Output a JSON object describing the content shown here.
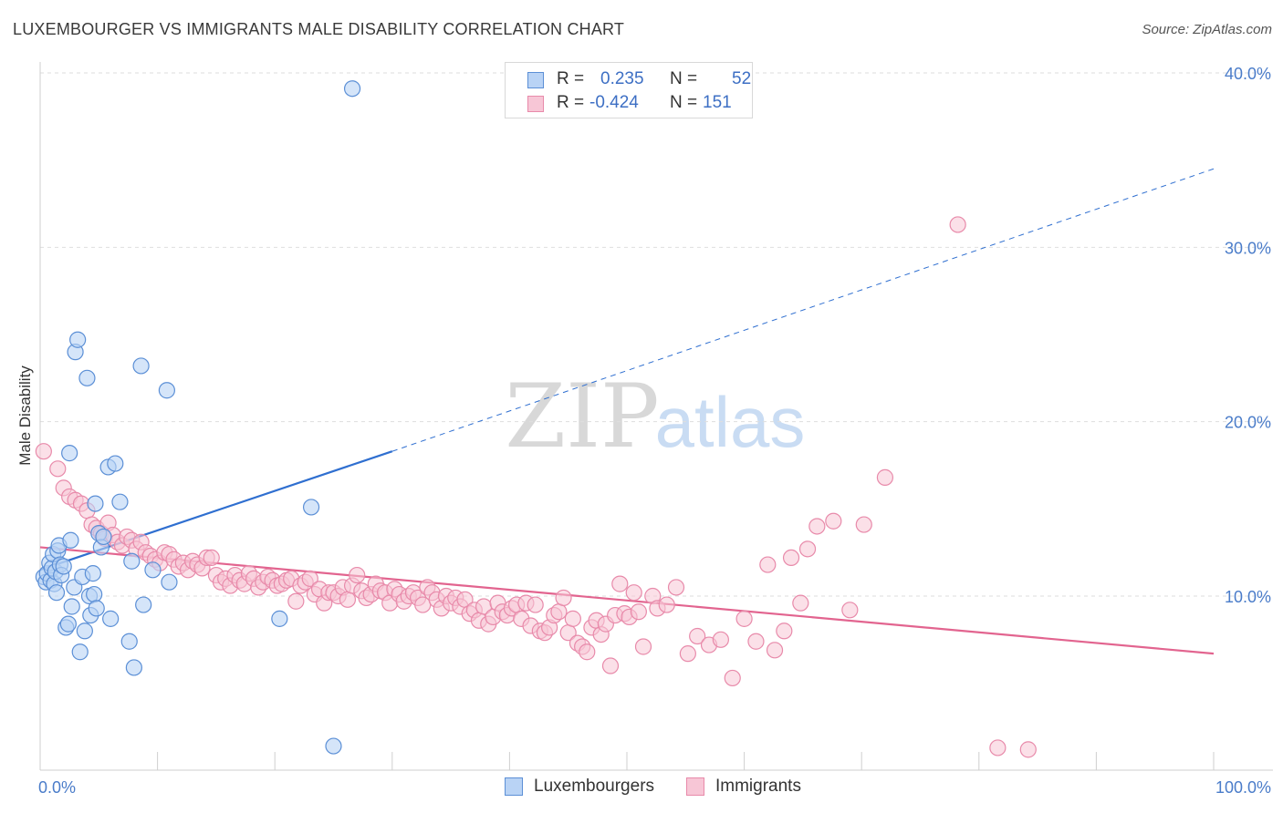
{
  "title": "LUXEMBOURGER VS IMMIGRANTS MALE DISABILITY CORRELATION CHART",
  "source": "Source: ZipAtlas.com",
  "colors": {
    "blue_fill": "#b9d3f5",
    "blue_stroke": "#5b8fd6",
    "blue_line": "#2f6fd0",
    "pink_fill": "#f7c6d6",
    "pink_stroke": "#e88aaa",
    "pink_line": "#e2648f",
    "tick_text": "#4a7cc9"
  },
  "legend": {
    "rows": [
      {
        "r_label": "R =",
        "r_value": "0.235",
        "n_label": "N =",
        "n_value": "52"
      },
      {
        "r_label": "R =",
        "r_value": "-0.424",
        "n_label": "N =",
        "n_value": "151"
      }
    ]
  },
  "bottom_legend": {
    "series1": "Luxembourgers",
    "series2": "Immigrants"
  },
  "chart_data": {
    "type": "scatter",
    "title": "LUXEMBOURGER VS IMMIGRANTS MALE DISABILITY CORRELATION CHART",
    "xlabel": "",
    "ylabel": "Male Disability",
    "xlim": [
      0,
      100
    ],
    "ylim": [
      0,
      42
    ],
    "x_tick_labels": [
      "0.0%",
      "100.0%"
    ],
    "y_ticks": [
      10,
      20,
      30,
      40
    ],
    "y_tick_labels": [
      "10.0%",
      "20.0%",
      "30.0%",
      "40.0%"
    ],
    "grid": true,
    "legend_position": "top-center",
    "watermark": {
      "part1": "ZIP",
      "part2": "atlas"
    },
    "series": [
      {
        "name": "Luxembourgers",
        "R": 0.235,
        "N": 52,
        "trend": {
          "x0": 0,
          "y0": 11.5,
          "x1": 30,
          "y1": 18.3,
          "dash_x1": 100,
          "dash_y1": 34.5
        },
        "points": [
          [
            0.3,
            11.1
          ],
          [
            0.5,
            10.8
          ],
          [
            0.6,
            11.3
          ],
          [
            0.8,
            11.9
          ],
          [
            0.9,
            10.9
          ],
          [
            1.0,
            11.6
          ],
          [
            1.1,
            12.4
          ],
          [
            1.2,
            10.7
          ],
          [
            1.3,
            11.4
          ],
          [
            1.4,
            10.2
          ],
          [
            1.5,
            12.6
          ],
          [
            1.6,
            12.9
          ],
          [
            1.7,
            11.8
          ],
          [
            1.8,
            11.2
          ],
          [
            2.0,
            11.7
          ],
          [
            2.2,
            8.2
          ],
          [
            2.4,
            8.4
          ],
          [
            2.5,
            18.2
          ],
          [
            2.6,
            13.2
          ],
          [
            2.7,
            9.4
          ],
          [
            2.9,
            10.5
          ],
          [
            3.0,
            24.0
          ],
          [
            3.2,
            24.7
          ],
          [
            3.4,
            6.8
          ],
          [
            3.6,
            11.1
          ],
          [
            3.8,
            8.0
          ],
          [
            4.0,
            22.5
          ],
          [
            4.2,
            10.0
          ],
          [
            4.3,
            8.9
          ],
          [
            4.5,
            11.3
          ],
          [
            4.6,
            10.1
          ],
          [
            4.7,
            15.3
          ],
          [
            4.8,
            9.3
          ],
          [
            5.0,
            13.6
          ],
          [
            5.2,
            12.8
          ],
          [
            5.4,
            13.4
          ],
          [
            5.8,
            17.4
          ],
          [
            6.0,
            8.7
          ],
          [
            6.4,
            17.6
          ],
          [
            6.8,
            15.4
          ],
          [
            7.6,
            7.4
          ],
          [
            7.8,
            12.0
          ],
          [
            8.0,
            5.9
          ],
          [
            8.6,
            23.2
          ],
          [
            8.8,
            9.5
          ],
          [
            9.6,
            11.5
          ],
          [
            10.8,
            21.8
          ],
          [
            11.0,
            10.8
          ],
          [
            20.4,
            8.7
          ],
          [
            23.1,
            15.1
          ],
          [
            25.0,
            1.4
          ],
          [
            26.6,
            39.1
          ]
        ]
      },
      {
        "name": "Immigrants",
        "R": -0.424,
        "N": 151,
        "trend": {
          "x0": 0,
          "y0": 12.8,
          "x1": 100,
          "y1": 6.7
        },
        "points": [
          [
            0.3,
            18.3
          ],
          [
            1.5,
            17.3
          ],
          [
            2.0,
            16.2
          ],
          [
            2.5,
            15.7
          ],
          [
            3.0,
            15.5
          ],
          [
            3.5,
            15.3
          ],
          [
            4.0,
            14.9
          ],
          [
            4.4,
            14.1
          ],
          [
            4.8,
            13.9
          ],
          [
            5.2,
            13.6
          ],
          [
            5.5,
            13.3
          ],
          [
            5.8,
            14.2
          ],
          [
            6.2,
            13.5
          ],
          [
            6.6,
            13.1
          ],
          [
            7.0,
            12.9
          ],
          [
            7.4,
            13.4
          ],
          [
            7.8,
            13.2
          ],
          [
            8.2,
            12.7
          ],
          [
            8.6,
            13.1
          ],
          [
            9.0,
            12.5
          ],
          [
            9.4,
            12.3
          ],
          [
            9.8,
            12.1
          ],
          [
            10.2,
            11.9
          ],
          [
            10.6,
            12.5
          ],
          [
            11.0,
            12.4
          ],
          [
            11.4,
            12.1
          ],
          [
            11.8,
            11.7
          ],
          [
            12.2,
            11.9
          ],
          [
            12.6,
            11.5
          ],
          [
            13.0,
            12.0
          ],
          [
            13.4,
            11.8
          ],
          [
            13.8,
            11.6
          ],
          [
            14.2,
            12.2
          ],
          [
            14.6,
            12.2
          ],
          [
            15.0,
            11.2
          ],
          [
            15.4,
            10.8
          ],
          [
            15.8,
            11.0
          ],
          [
            16.2,
            10.6
          ],
          [
            16.6,
            11.2
          ],
          [
            17.0,
            10.9
          ],
          [
            17.4,
            10.7
          ],
          [
            17.8,
            11.3
          ],
          [
            18.2,
            11.0
          ],
          [
            18.6,
            10.5
          ],
          [
            19.0,
            10.8
          ],
          [
            19.4,
            11.1
          ],
          [
            19.8,
            10.9
          ],
          [
            20.2,
            10.6
          ],
          [
            20.6,
            10.7
          ],
          [
            21.0,
            10.9
          ],
          [
            21.4,
            11.0
          ],
          [
            21.8,
            9.7
          ],
          [
            22.2,
            10.6
          ],
          [
            22.6,
            10.8
          ],
          [
            23.0,
            11.0
          ],
          [
            23.4,
            10.1
          ],
          [
            23.8,
            10.4
          ],
          [
            24.2,
            9.6
          ],
          [
            24.6,
            10.2
          ],
          [
            25.0,
            10.2
          ],
          [
            25.4,
            10.0
          ],
          [
            25.8,
            10.5
          ],
          [
            26.2,
            9.8
          ],
          [
            26.6,
            10.6
          ],
          [
            27.0,
            11.2
          ],
          [
            27.4,
            10.3
          ],
          [
            27.8,
            9.9
          ],
          [
            28.2,
            10.1
          ],
          [
            28.6,
            10.7
          ],
          [
            29.0,
            10.3
          ],
          [
            29.4,
            10.2
          ],
          [
            29.8,
            9.6
          ],
          [
            30.2,
            10.4
          ],
          [
            30.6,
            10.1
          ],
          [
            31.0,
            9.7
          ],
          [
            31.4,
            10.0
          ],
          [
            31.8,
            10.2
          ],
          [
            32.2,
            9.9
          ],
          [
            32.6,
            9.5
          ],
          [
            33.0,
            10.5
          ],
          [
            33.4,
            10.2
          ],
          [
            33.8,
            9.8
          ],
          [
            34.2,
            9.3
          ],
          [
            34.6,
            10.0
          ],
          [
            35.0,
            9.6
          ],
          [
            35.4,
            9.9
          ],
          [
            35.8,
            9.4
          ],
          [
            36.2,
            9.8
          ],
          [
            36.6,
            9.0
          ],
          [
            37.0,
            9.2
          ],
          [
            37.4,
            8.6
          ],
          [
            37.8,
            9.4
          ],
          [
            38.2,
            8.4
          ],
          [
            38.6,
            8.8
          ],
          [
            39.0,
            9.6
          ],
          [
            39.4,
            9.1
          ],
          [
            39.8,
            8.9
          ],
          [
            40.2,
            9.3
          ],
          [
            40.6,
            9.5
          ],
          [
            41.0,
            8.7
          ],
          [
            41.4,
            9.6
          ],
          [
            41.8,
            8.3
          ],
          [
            42.2,
            9.5
          ],
          [
            42.6,
            8.0
          ],
          [
            43.0,
            7.9
          ],
          [
            43.4,
            8.2
          ],
          [
            43.8,
            8.9
          ],
          [
            44.2,
            9.1
          ],
          [
            44.6,
            9.9
          ],
          [
            45.0,
            7.9
          ],
          [
            45.4,
            8.7
          ],
          [
            45.8,
            7.3
          ],
          [
            46.2,
            7.1
          ],
          [
            46.6,
            6.8
          ],
          [
            47.0,
            8.2
          ],
          [
            47.4,
            8.6
          ],
          [
            47.8,
            7.8
          ],
          [
            48.2,
            8.4
          ],
          [
            48.6,
            6.0
          ],
          [
            49.0,
            8.9
          ],
          [
            49.4,
            10.7
          ],
          [
            49.8,
            9.0
          ],
          [
            50.2,
            8.8
          ],
          [
            50.6,
            10.2
          ],
          [
            51.0,
            9.1
          ],
          [
            51.4,
            7.1
          ],
          [
            52.2,
            10.0
          ],
          [
            52.6,
            9.3
          ],
          [
            53.4,
            9.5
          ],
          [
            54.2,
            10.5
          ],
          [
            55.2,
            6.7
          ],
          [
            56.0,
            7.7
          ],
          [
            57.0,
            7.2
          ],
          [
            58.0,
            7.5
          ],
          [
            59.0,
            5.3
          ],
          [
            60.0,
            8.7
          ],
          [
            61.0,
            7.4
          ],
          [
            62.0,
            11.8
          ],
          [
            62.6,
            6.9
          ],
          [
            63.4,
            8.0
          ],
          [
            64.0,
            12.2
          ],
          [
            64.8,
            9.6
          ],
          [
            65.4,
            12.7
          ],
          [
            66.2,
            14.0
          ],
          [
            67.6,
            14.3
          ],
          [
            69.0,
            9.2
          ],
          [
            70.2,
            14.1
          ],
          [
            72.0,
            16.8
          ],
          [
            78.2,
            31.3
          ],
          [
            81.6,
            1.3
          ],
          [
            84.2,
            1.2
          ]
        ]
      }
    ]
  }
}
